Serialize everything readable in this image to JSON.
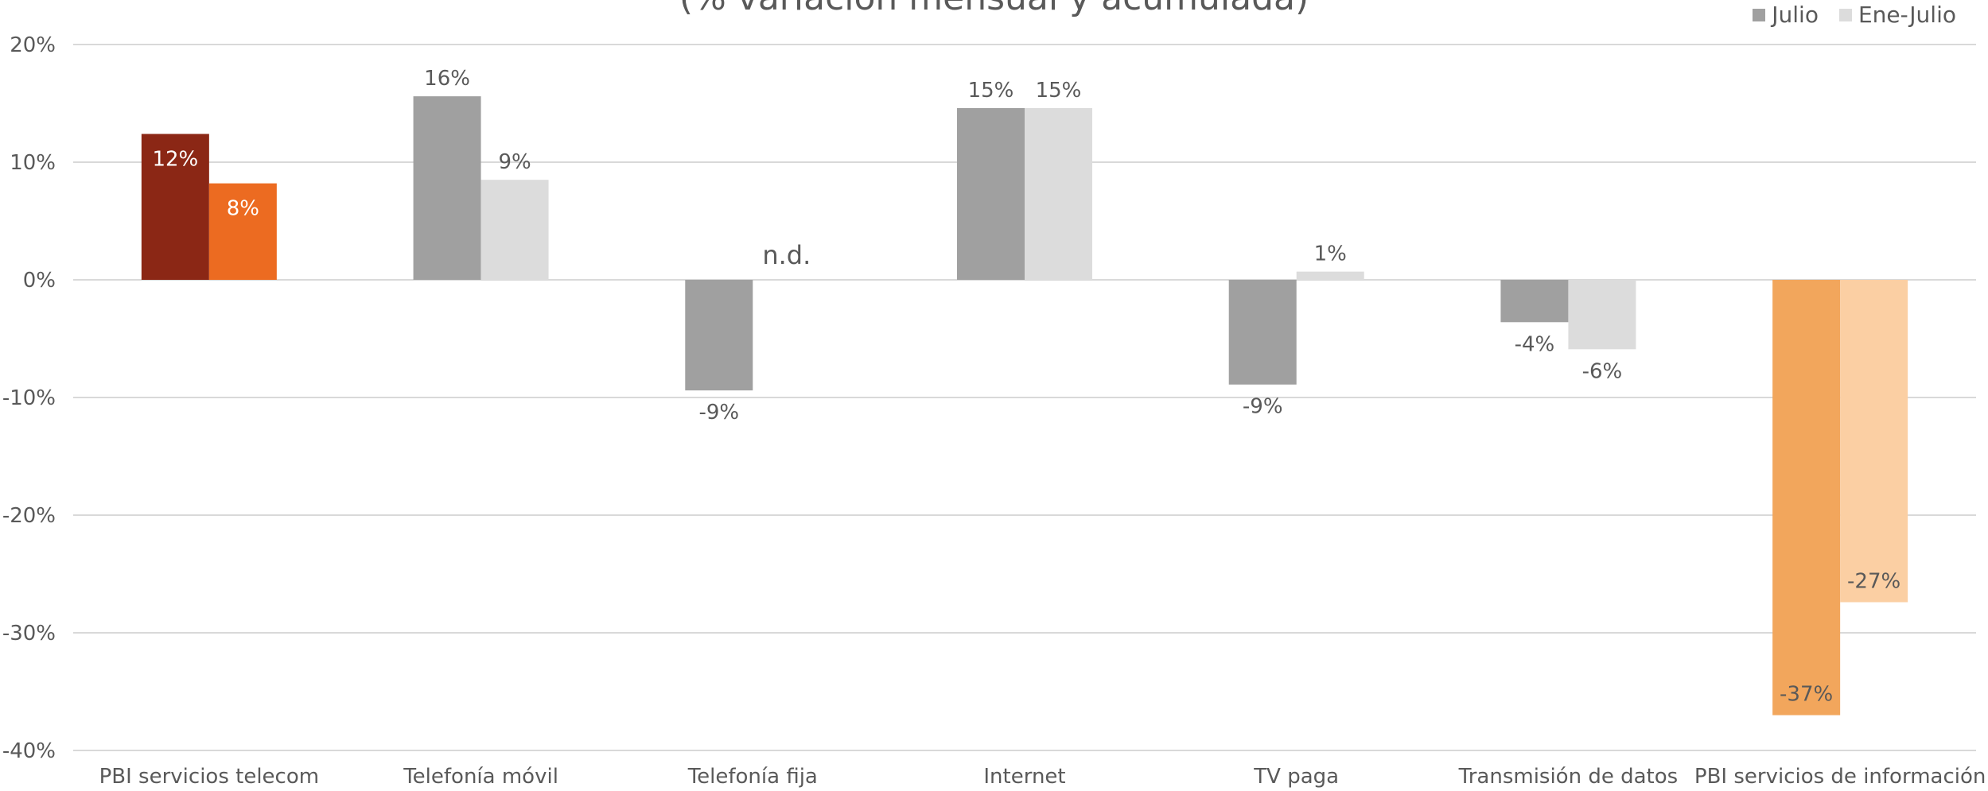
{
  "chart_data": {
    "type": "bar",
    "subtitle": "(% variación mensual y acumulada)",
    "categories": [
      "PBI servicios telecom",
      "Telefonía móvil",
      "Telefonía fija",
      "Internet",
      "TV paga",
      "Transmisión de datos",
      "PBI servicios de información"
    ],
    "series": [
      {
        "name": "Julio",
        "values": [
          12.4,
          15.6,
          -9.4,
          14.6,
          -8.9,
          -3.6,
          -37
        ],
        "labels": [
          "12%",
          "16%",
          "-9%",
          "15%",
          "-9%",
          "-4%",
          "-37%"
        ]
      },
      {
        "name": "Ene-Julio",
        "values": [
          8.2,
          8.5,
          null,
          14.6,
          0.7,
          -5.9,
          -27.4
        ],
        "labels": [
          "8%",
          "9%",
          "n.d.",
          "15%",
          "1%",
          "-6%",
          "-27%"
        ]
      }
    ],
    "ylim": [
      -40,
      20
    ],
    "yticks": [
      20,
      10,
      0,
      -10,
      -20,
      -30,
      -40
    ],
    "ytick_labels": [
      "20%",
      "10%",
      "0%",
      "-10%",
      "-20%",
      "-30%",
      "-40%"
    ],
    "grid": true,
    "legend_position": "top-right",
    "colors": {
      "julio_default": "#a0a0a0",
      "ene_julio_default": "#dcdcdc",
      "highlight_first": [
        "#8b2715",
        "#ec6b21"
      ],
      "highlight_last": [
        "#f2a65c",
        "#fbcfa3"
      ],
      "gridline": "#d9d9d9",
      "text": "#595959"
    }
  }
}
